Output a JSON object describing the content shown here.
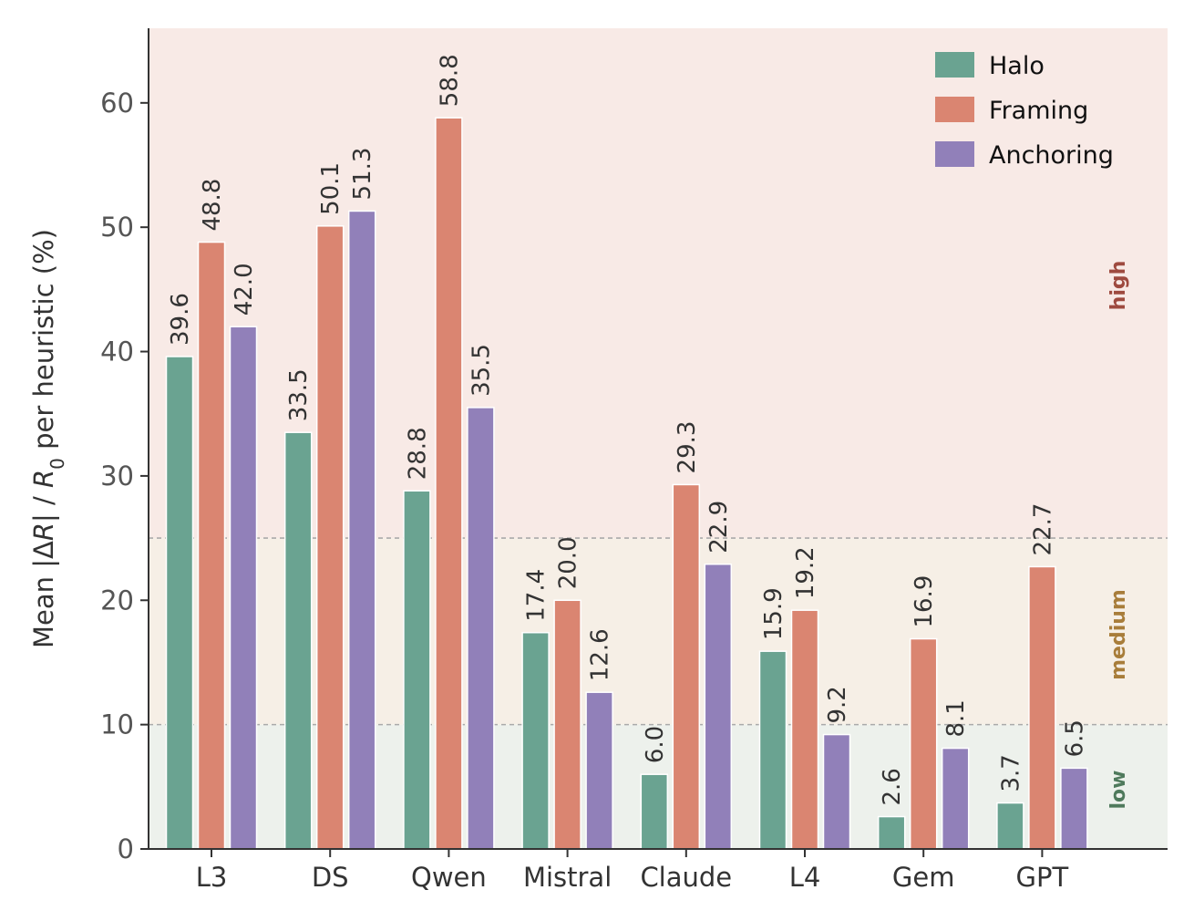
{
  "chart_data": {
    "type": "bar",
    "categories": [
      "L3",
      "DS",
      "Qwen",
      "Mistral",
      "Claude",
      "L4",
      "Gem",
      "GPT"
    ],
    "series": [
      {
        "name": "Halo",
        "color": "#6aa391",
        "values": [
          39.6,
          33.5,
          28.8,
          17.4,
          6.0,
          15.9,
          2.6,
          3.7
        ]
      },
      {
        "name": "Framing",
        "color": "#da8571",
        "values": [
          48.8,
          50.1,
          58.8,
          20.0,
          29.3,
          19.2,
          16.9,
          22.7
        ]
      },
      {
        "name": "Anchoring",
        "color": "#9180b9",
        "values": [
          42.0,
          51.3,
          35.5,
          12.6,
          22.9,
          9.2,
          8.1,
          6.5
        ]
      }
    ],
    "value_labels": [
      [
        "39.6",
        "33.5",
        "28.8",
        "17.4",
        "6.0",
        "15.9",
        "2.6",
        "3.7"
      ],
      [
        "48.8",
        "50.1",
        "58.8",
        "20.0",
        "29.3",
        "19.2",
        "16.9",
        "22.7"
      ],
      [
        "42.0",
        "51.3",
        "35.5",
        "12.6",
        "22.9",
        "9.2",
        "8.1",
        "6.5"
      ]
    ],
    "ylabel_parts": [
      "Mean |Δ",
      "R",
      "| / ",
      "R",
      "0",
      " per heuristic (%)"
    ],
    "ylim": [
      0,
      66
    ],
    "yticks": [
      0,
      10,
      20,
      30,
      40,
      50,
      60
    ],
    "ytick_labels": [
      "0",
      "10",
      "20",
      "30",
      "40",
      "50",
      "60"
    ],
    "bands": [
      {
        "label": "low",
        "from": 0,
        "to": 10,
        "fill": "#edf1ec",
        "text_color": "#4f7a5c"
      },
      {
        "label": "medium",
        "from": 10,
        "to": 25,
        "fill": "#f6efe6",
        "text_color": "#a87d3a"
      },
      {
        "label": "high",
        "from": 25,
        "to": 66,
        "fill": "#f8eae6",
        "text_color": "#9e4a3f"
      }
    ],
    "threshold_lines": [
      10,
      25
    ],
    "legend_position": "top-right",
    "grid": false
  }
}
